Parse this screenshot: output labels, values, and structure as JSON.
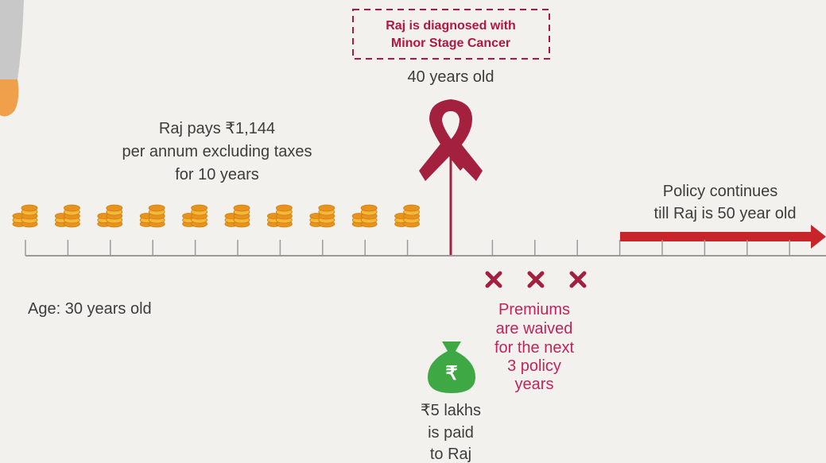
{
  "diagnosis": {
    "box_lines": [
      "Raj is diagnosed with",
      "Minor Stage Cancer"
    ],
    "age": "40 years old"
  },
  "payment": {
    "lines": [
      "Raj pays ₹1,144",
      "per annum excluding taxes",
      "for 10 years"
    ]
  },
  "policy": {
    "lines": [
      "Policy continues",
      "till Raj is 50 year old"
    ]
  },
  "start_age": "Age: 30 years old",
  "waiver": {
    "lines": [
      "Premiums",
      "are waived",
      "for the next",
      "3 policy",
      "years"
    ]
  },
  "payout": {
    "icon": "₹",
    "lines": [
      "₹5 lakhs",
      "is paid",
      "to Raj"
    ]
  }
}
